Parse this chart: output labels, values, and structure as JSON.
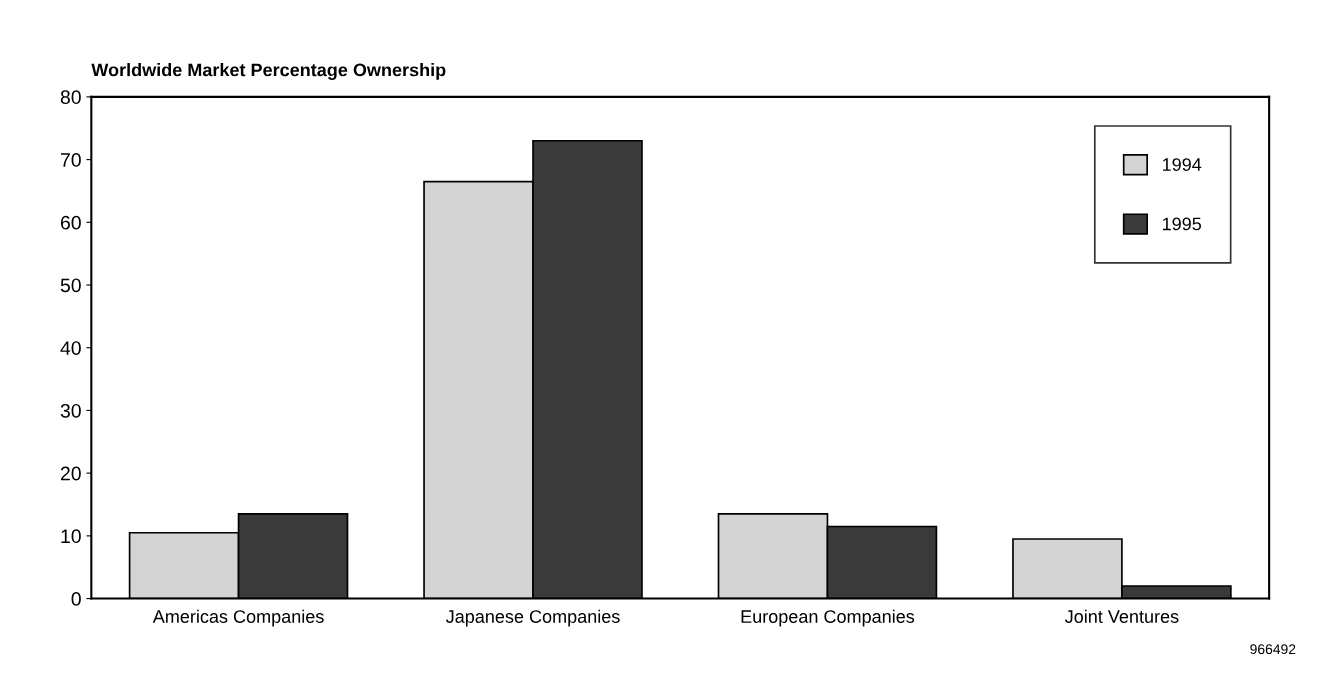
{
  "chart_data": {
    "type": "bar",
    "title": "Worldwide Market Percentage Ownership",
    "categories": [
      "Americas Companies",
      "Japanese Companies",
      "European Companies",
      "Joint Ventures"
    ],
    "series": [
      {
        "name": "1994",
        "color": "#d4d4d4",
        "values": [
          10.5,
          66.5,
          13.5,
          9.5
        ]
      },
      {
        "name": "1995",
        "color": "#3a3a3a",
        "values": [
          13.5,
          73,
          11.5,
          2
        ]
      }
    ],
    "ylim": [
      0,
      80
    ],
    "yticks": [
      0,
      10,
      20,
      30,
      40,
      50,
      60,
      70,
      80
    ],
    "grid": false,
    "legend": "top right",
    "annotations": [
      "966492"
    ]
  }
}
